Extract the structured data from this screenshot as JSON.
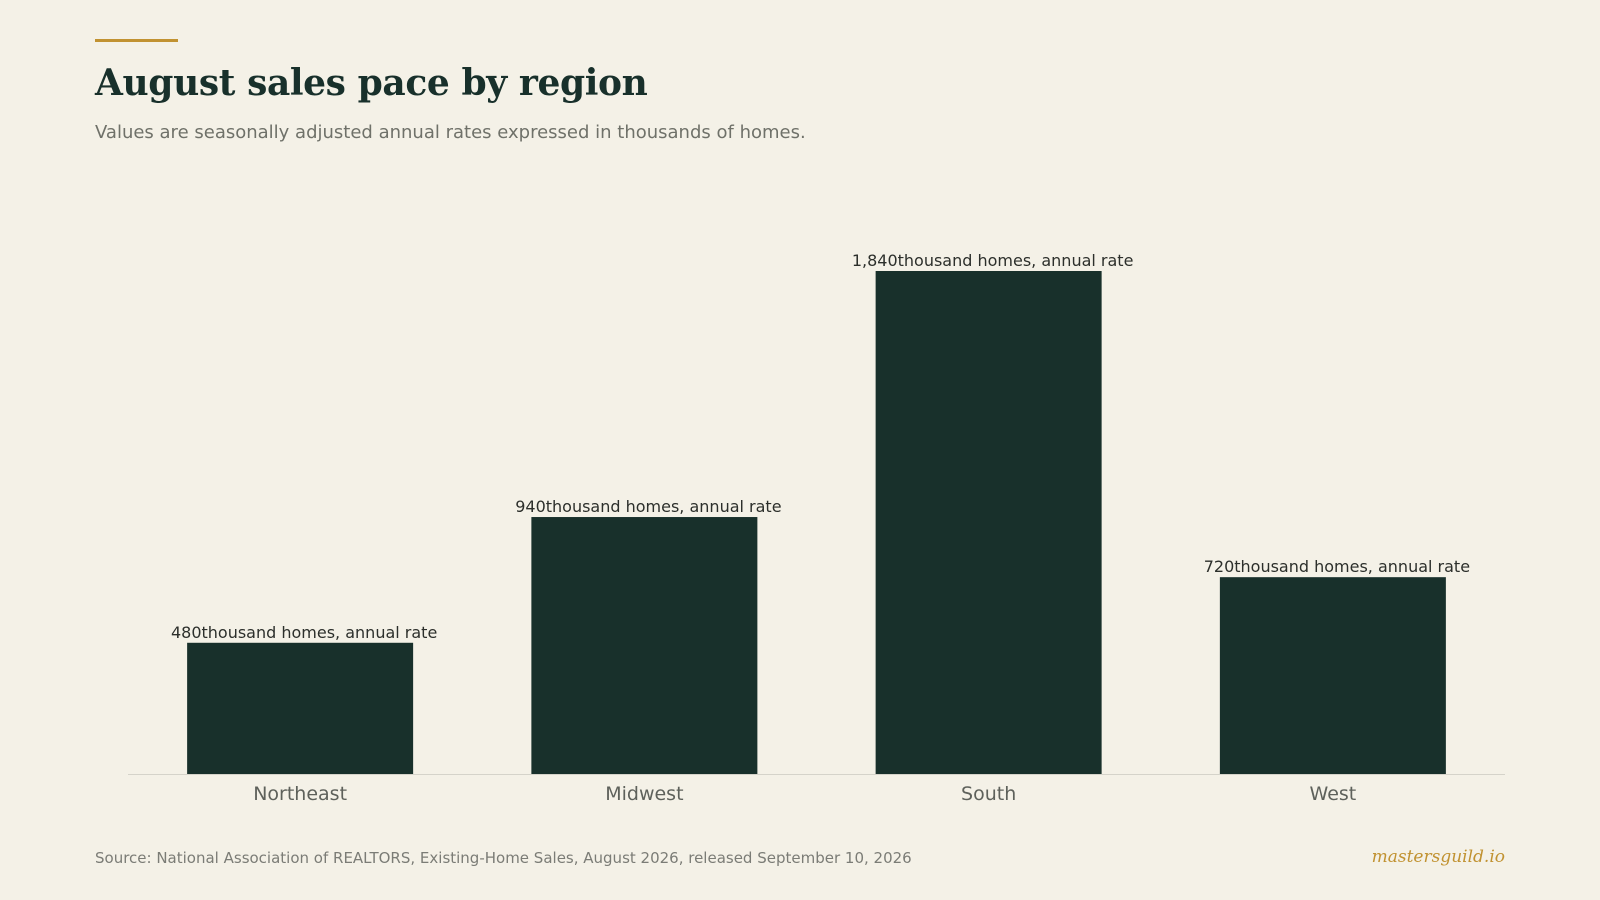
{
  "header": {
    "title": "August sales pace by region",
    "subtitle": "Values are seasonally adjusted annual rates expressed in thousands of homes."
  },
  "footer": {
    "source": "Source: National Association of REALTORS, Existing-Home Sales, August 2026, released September 10, 2026",
    "brand": "mastersguild.io"
  },
  "colors": {
    "background": "#f4f1e7",
    "bar": "#18302b",
    "accent": "#c19231",
    "baseline": "#d5d3ca"
  },
  "chart_data": {
    "type": "bar",
    "categories": [
      "Northeast",
      "Midwest",
      "South",
      "West"
    ],
    "values": [
      480,
      940,
      1840,
      720
    ],
    "value_labels": [
      "480",
      "940",
      "1,840",
      "720"
    ],
    "label_unit_suffix": "thousand homes, annual rate",
    "ylim": [
      0,
      1840
    ],
    "grid": false,
    "legend": "none"
  }
}
